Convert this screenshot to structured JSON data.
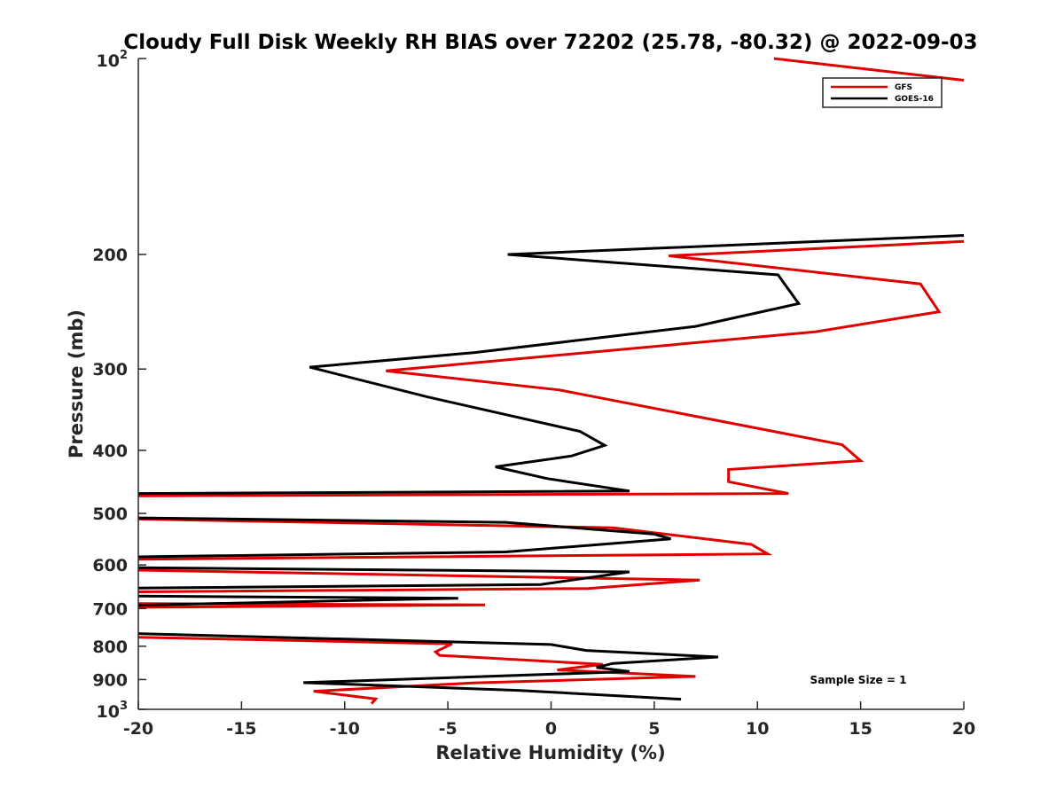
{
  "chart_data": {
    "type": "line",
    "title": "Cloudy Full Disk Weekly RH BIAS over 72202 (25.78, -80.32) @ 2022-09-03",
    "xlabel": "Relative Humidity (%)",
    "ylabel": "Pressure (mb)",
    "xlim": [
      -20,
      20
    ],
    "ylim": [
      100,
      1000
    ],
    "yscale": "log",
    "y_reversed": true,
    "x_ticks": [
      "-20",
      "-15",
      "-10",
      "-5",
      "0",
      "5",
      "10",
      "15",
      "20"
    ],
    "y_ticks": [
      "200",
      "300",
      "400",
      "500",
      "600",
      "700",
      "800",
      "900"
    ],
    "y_tick_values": [
      200,
      300,
      400,
      500,
      600,
      700,
      800,
      900
    ],
    "y_top_label": {
      "base": "10",
      "exp": "2"
    },
    "y_bottom_label": {
      "base": "10",
      "exp": "3"
    },
    "legend": {
      "position": "top-right",
      "entries": [
        "GFS",
        "GOES-16"
      ]
    },
    "annotation": "Sample Size = 1",
    "grid": false,
    "series": [
      {
        "name": "GFS",
        "color": "#e00000",
        "segments": [
          [
            [
              10.8,
              100
            ],
            [
              20,
              108
            ]
          ],
          [
            [
              20,
              191
            ],
            [
              5.7,
              201
            ],
            [
              17.9,
              222
            ],
            [
              18.8,
              245
            ],
            [
              12.8,
              263
            ],
            [
              -8,
              302
            ],
            [
              0.4,
              323
            ],
            [
              14.1,
              392
            ],
            [
              15,
              415
            ],
            [
              8.6,
              428
            ],
            [
              8.6,
              447
            ],
            [
              11.5,
              466
            ],
            [
              -20,
              470
            ]
          ],
          [
            [
              -20,
              510
            ],
            [
              3,
              526
            ],
            [
              9.7,
              558
            ],
            [
              10.5,
              577
            ],
            [
              -20,
              588
            ]
          ],
          [
            [
              -20,
              611
            ],
            [
              7.2,
              633
            ],
            [
              1.8,
              652
            ],
            [
              -20,
              660
            ]
          ],
          [
            [
              -20,
              688
            ],
            [
              -3.2,
              691
            ],
            [
              -20,
              697
            ]
          ],
          [
            [
              -20,
              775
            ],
            [
              -4.8,
              793
            ],
            [
              -5.6,
              816
            ],
            [
              -5.4,
              826
            ],
            [
              2.5,
              853
            ],
            [
              0.3,
              870
            ],
            [
              7,
              890
            ],
            [
              -3.8,
              911
            ],
            [
              -11.5,
              938
            ],
            [
              -8.5,
              964
            ],
            [
              -8.7,
              980
            ]
          ]
        ]
      },
      {
        "name": "GOES-16",
        "color": "#000000",
        "segments": [
          [
            [
              20,
              187
            ],
            [
              -2.1,
              200
            ],
            [
              11,
              215
            ],
            [
              12,
              238
            ],
            [
              7,
              258
            ],
            [
              -3.7,
              283
            ],
            [
              -11.7,
              298
            ],
            [
              -6,
              331
            ],
            [
              1.4,
              374
            ],
            [
              2.6,
              393
            ],
            [
              1,
              408
            ],
            [
              -2.7,
              424
            ],
            [
              -0.2,
              442
            ],
            [
              3.8,
              462
            ],
            [
              -20,
              466
            ]
          ],
          [
            [
              -20,
              508
            ],
            [
              -2.2,
              516
            ],
            [
              5,
              538
            ],
            [
              5.8,
              547
            ],
            [
              -2.2,
              573
            ],
            [
              -20,
              583
            ]
          ],
          [
            [
              -20,
              606
            ],
            [
              3.8,
              615
            ],
            [
              -0.5,
              643
            ],
            [
              -20,
              651
            ]
          ],
          [
            [
              -20,
              670
            ],
            [
              -4.5,
              675
            ],
            [
              -20,
              692
            ]
          ],
          [
            [
              -20,
              765
            ],
            [
              0,
              795
            ],
            [
              1.7,
              812
            ],
            [
              8.1,
              831
            ],
            [
              3,
              850
            ],
            [
              2.2,
              862
            ],
            [
              3.8,
              875
            ],
            [
              -12,
              910
            ],
            [
              -1.6,
              935
            ],
            [
              6.3,
              965
            ]
          ]
        ]
      }
    ]
  }
}
